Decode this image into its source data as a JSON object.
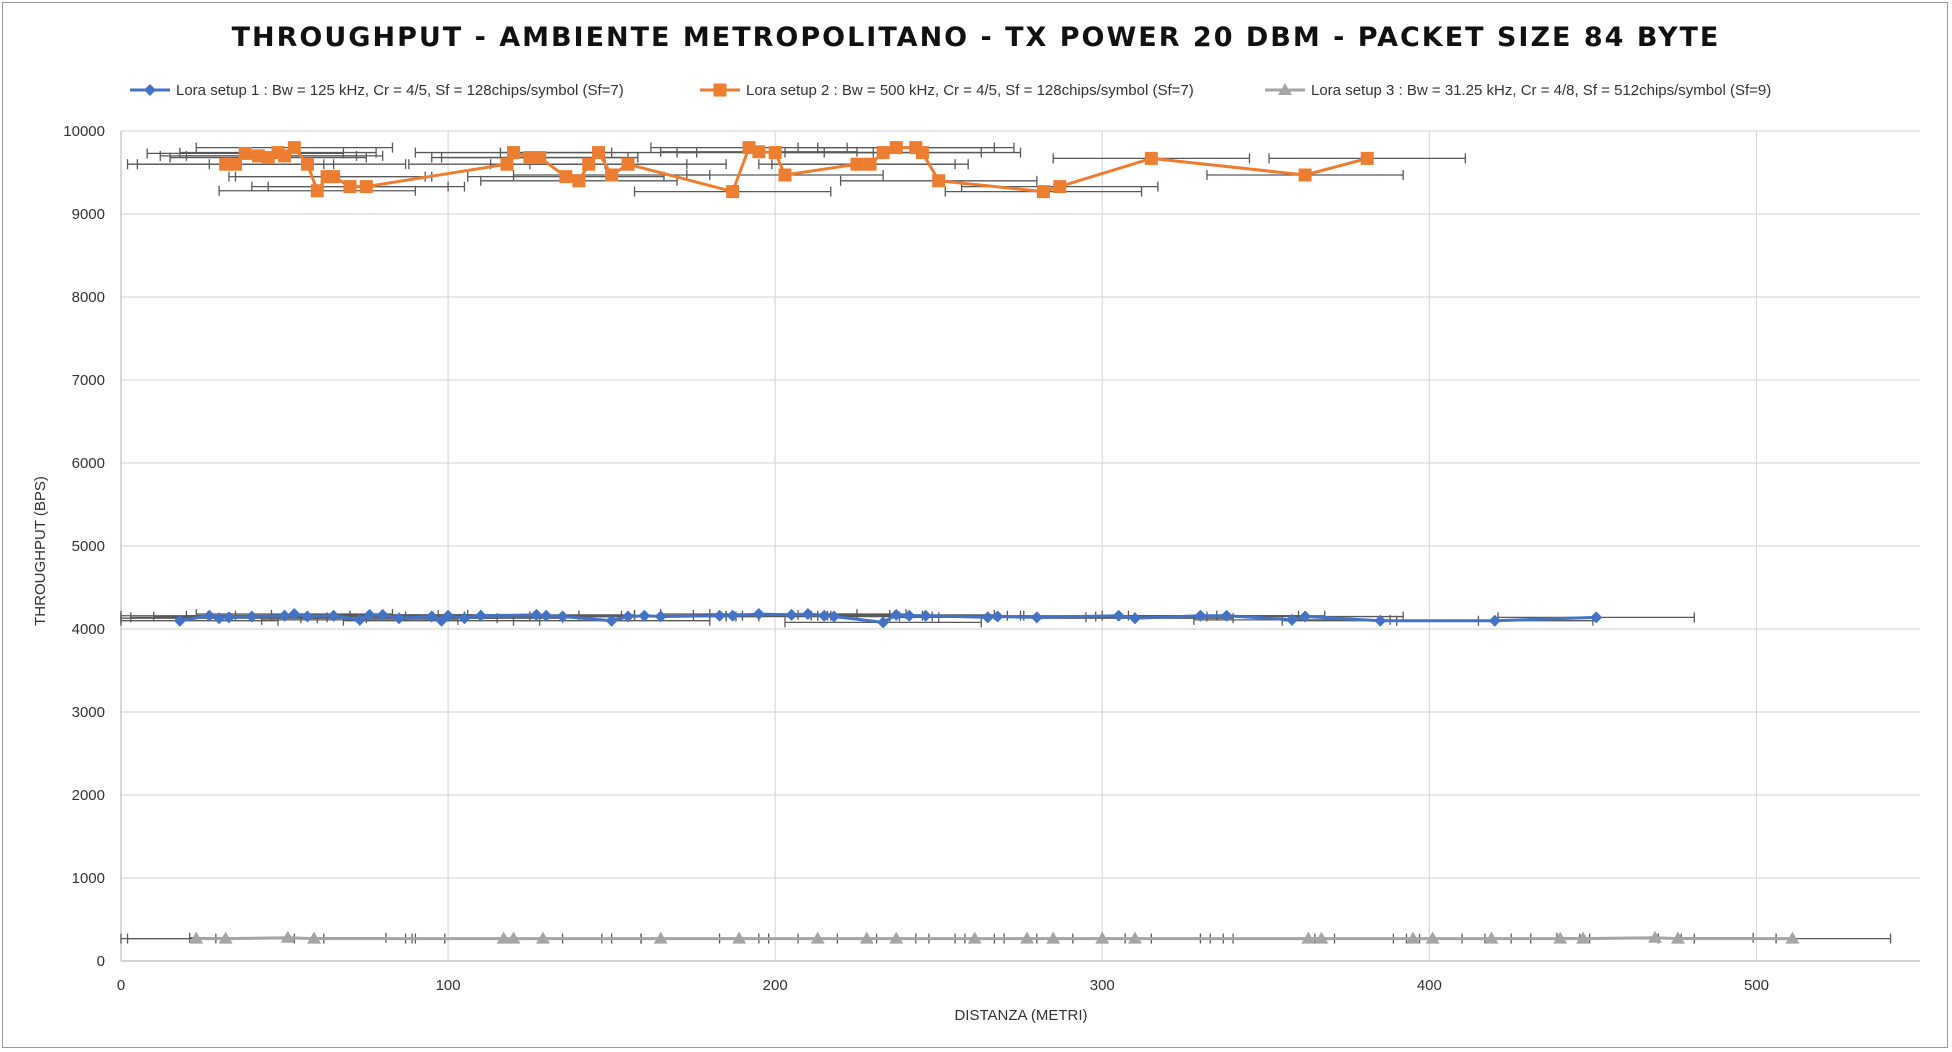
{
  "chart_data": {
    "type": "scatter",
    "title": "THROUGHPUT - AMBIENTE METROPOLITANO - TX POWER 20 DBM - PACKET SIZE 84 BYTE",
    "xlabel": "DISTANZA (METRI)",
    "ylabel": "THROUGHPUT (BPS)",
    "xlim": [
      0,
      550
    ],
    "ylim": [
      0,
      10000
    ],
    "x_ticks": [
      0,
      100,
      200,
      300,
      400,
      500
    ],
    "y_ticks": [
      0,
      1000,
      2000,
      3000,
      4000,
      5000,
      6000,
      7000,
      8000,
      9000,
      10000
    ],
    "grid": true,
    "legend_position": "top",
    "series": [
      {
        "name": "Lora setup 1 : Bw = 125 kHz, Cr = 4/5, Sf = 128chips/symbol (Sf=7)",
        "color": "#4472C4",
        "marker": "diamond",
        "x_error": 30,
        "points": [
          [
            18,
            4100
          ],
          [
            27,
            4160
          ],
          [
            30,
            4130
          ],
          [
            33,
            4140
          ],
          [
            40,
            4150
          ],
          [
            50,
            4160
          ],
          [
            53,
            4180
          ],
          [
            57,
            4150
          ],
          [
            65,
            4160
          ],
          [
            73,
            4110
          ],
          [
            76,
            4170
          ],
          [
            80,
            4170
          ],
          [
            85,
            4130
          ],
          [
            95,
            4150
          ],
          [
            98,
            4100
          ],
          [
            100,
            4160
          ],
          [
            105,
            4130
          ],
          [
            110,
            4160
          ],
          [
            127,
            4170
          ],
          [
            130,
            4160
          ],
          [
            135,
            4150
          ],
          [
            150,
            4100
          ],
          [
            155,
            4150
          ],
          [
            160,
            4160
          ],
          [
            165,
            4150
          ],
          [
            183,
            4160
          ],
          [
            187,
            4160
          ],
          [
            195,
            4180
          ],
          [
            205,
            4170
          ],
          [
            210,
            4180
          ],
          [
            215,
            4160
          ],
          [
            218,
            4150
          ],
          [
            233,
            4080
          ],
          [
            237,
            4170
          ],
          [
            241,
            4160
          ],
          [
            246,
            4160
          ],
          [
            265,
            4140
          ],
          [
            268,
            4150
          ],
          [
            280,
            4140
          ],
          [
            305,
            4160
          ],
          [
            310,
            4130
          ],
          [
            330,
            4160
          ],
          [
            338,
            4160
          ],
          [
            358,
            4110
          ],
          [
            362,
            4150
          ],
          [
            385,
            4100
          ],
          [
            420,
            4100
          ],
          [
            451,
            4140
          ]
        ]
      },
      {
        "name": "Lora setup 2 : Bw = 500 kHz, Cr = 4/5, Sf = 128chips/symbol (Sf=7)",
        "color": "#ED7D31",
        "marker": "square",
        "x_error": 30,
        "points": [
          [
            32,
            9600
          ],
          [
            35,
            9600
          ],
          [
            38,
            9730
          ],
          [
            42,
            9700
          ],
          [
            45,
            9680
          ],
          [
            48,
            9740
          ],
          [
            50,
            9700
          ],
          [
            53,
            9800
          ],
          [
            57,
            9600
          ],
          [
            60,
            9280
          ],
          [
            63,
            9450
          ],
          [
            65,
            9450
          ],
          [
            70,
            9330
          ],
          [
            75,
            9330
          ],
          [
            118,
            9600
          ],
          [
            120,
            9740
          ],
          [
            125,
            9680
          ],
          [
            128,
            9680
          ],
          [
            136,
            9450
          ],
          [
            140,
            9400
          ],
          [
            143,
            9600
          ],
          [
            146,
            9740
          ],
          [
            150,
            9470
          ],
          [
            155,
            9600
          ],
          [
            187,
            9270
          ],
          [
            192,
            9800
          ],
          [
            195,
            9750
          ],
          [
            200,
            9740
          ],
          [
            203,
            9470
          ],
          [
            225,
            9600
          ],
          [
            229,
            9600
          ],
          [
            233,
            9740
          ],
          [
            237,
            9800
          ],
          [
            243,
            9800
          ],
          [
            245,
            9740
          ],
          [
            250,
            9400
          ],
          [
            282,
            9270
          ],
          [
            287,
            9330
          ],
          [
            315,
            9670
          ],
          [
            362,
            9470
          ],
          [
            381,
            9670
          ]
        ]
      },
      {
        "name": "Lora setup 3 : Bw = 31.25 kHz, Cr = 4/8, Sf = 512chips/symbol (Sf=9)",
        "color": "#A5A5A5",
        "marker": "triangle",
        "x_error": 30,
        "points": [
          [
            23,
            270
          ],
          [
            32,
            270
          ],
          [
            51,
            280
          ],
          [
            59,
            270
          ],
          [
            117,
            270
          ],
          [
            120,
            270
          ],
          [
            129,
            270
          ],
          [
            165,
            270
          ],
          [
            189,
            270
          ],
          [
            213,
            270
          ],
          [
            228,
            270
          ],
          [
            237,
            270
          ],
          [
            261,
            270
          ],
          [
            277,
            270
          ],
          [
            285,
            270
          ],
          [
            300,
            270
          ],
          [
            310,
            270
          ],
          [
            363,
            270
          ],
          [
            367,
            270
          ],
          [
            395,
            270
          ],
          [
            401,
            270
          ],
          [
            419,
            270
          ],
          [
            440,
            270
          ],
          [
            447,
            270
          ],
          [
            469,
            280
          ],
          [
            476,
            270
          ],
          [
            511,
            270
          ]
        ]
      }
    ]
  }
}
